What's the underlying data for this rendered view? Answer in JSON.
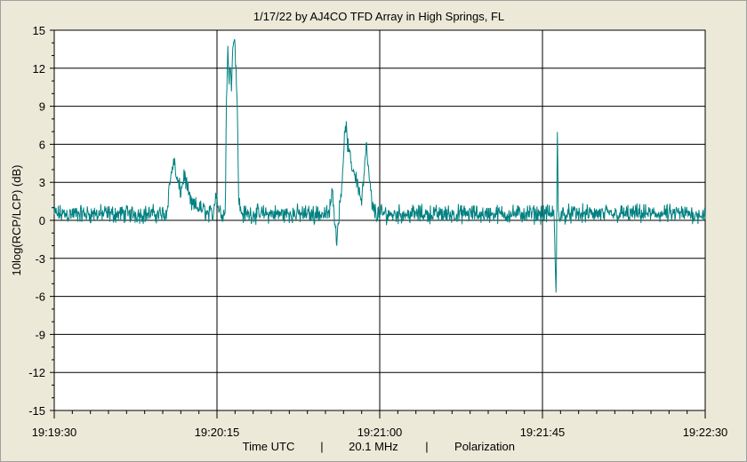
{
  "chart_data": {
    "type": "line",
    "title": "1/17/22  by  AJ4CO TFD Array  in  High Springs, FL",
    "ylabel": "10log(RCP/LCP) (dB)",
    "xlabel_parts": [
      "Time UTC",
      "|",
      "20.1 MHz",
      "|",
      "Polarization"
    ],
    "ylim": [
      -15,
      15
    ],
    "yticks": [
      15,
      12,
      9,
      6,
      3,
      0,
      -3,
      -6,
      -9,
      -12,
      -15
    ],
    "ytick_labels": [
      "15",
      "12",
      "9",
      "6",
      "3",
      "0",
      "-3",
      "-6",
      "-9",
      "-12",
      "-15"
    ],
    "xlim_seconds": [
      0,
      180
    ],
    "xticks_seconds": [
      0,
      45,
      90,
      135,
      180
    ],
    "xtick_labels": [
      "19:19:30",
      "19:20:15",
      "19:21:00",
      "19:21:45",
      "19:22:30"
    ],
    "grid": true,
    "series": [
      {
        "color": "#008080",
        "baseline_db": 0.5,
        "noise_amplitude_db": 0.9,
        "features": [
          {
            "t": [
              31,
              32,
              33,
              34,
              35,
              36,
              37,
              38,
              40,
              42
            ],
            "db": [
              0.5,
              3.0,
              4.8,
              3.0,
              2.3,
              3.6,
              2.2,
              1.2,
              1.0,
              0.7
            ]
          },
          {
            "t": [
              44,
              44.8,
              45.2,
              46
            ],
            "db": [
              0.6,
              2.5,
              1.2,
              0.6
            ]
          },
          {
            "t": [
              47.3,
              47.6,
              48.0,
              48.3,
              48.6,
              49.0,
              49.4,
              49.8,
              50.2,
              50.6,
              51.0,
              51.4,
              52
            ],
            "db": [
              0.5,
              9.5,
              13.5,
              10.5,
              13.0,
              11.0,
              13.5,
              14.8,
              12.5,
              9.0,
              2.0,
              0.8,
              0.6
            ]
          },
          {
            "t": [
              76,
              77,
              78,
              79,
              79.5,
              80,
              80.6,
              81,
              82,
              83,
              84,
              85,
              86,
              86.4,
              87,
              88,
              89
            ],
            "db": [
              0.5,
              2.4,
              -1.6,
              1.2,
              3.0,
              5.2,
              7.8,
              6.2,
              4.5,
              3.8,
              2.8,
              1.5,
              4.8,
              5.8,
              3.5,
              1.0,
              0.6
            ]
          },
          {
            "t": [
              138.2,
              138.5,
              138.8,
              139.1,
              139.4,
              139.8
            ],
            "db": [
              0.3,
              -2.8,
              -6.4,
              7.5,
              0.4,
              0.3
            ]
          }
        ]
      }
    ]
  }
}
